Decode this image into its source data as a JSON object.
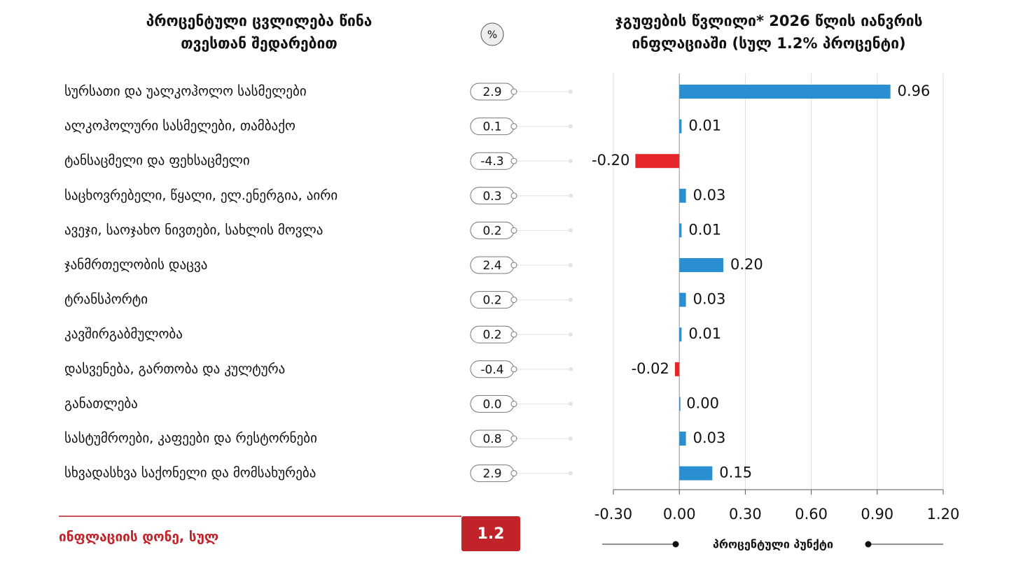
{
  "monthly_change": {
    "title": "პროცენტული ცვლილება წინა თვესთან შედარებით",
    "unit": "%",
    "values": [
      "2.9",
      "0.1",
      "-4.3",
      "0.3",
      "0.2",
      "2.4",
      "0.2",
      "0.2",
      "-0.4",
      "0.0",
      "0.8",
      "2.9"
    ]
  },
  "total": {
    "label": "ინფლაციის დონე, სულ",
    "value": "1.2"
  },
  "chart_data": {
    "type": "bar",
    "orientation": "horizontal",
    "title": "ჯგუფების წვლილი* 2026 წლის იანვრის ინფლაციაში (სულ 1.2% პროცენტი)",
    "x_label": "პროცენტული პუნქტი",
    "categories": [
      "სურსათი და უალკოჰოლო სასმელები",
      "ალკოჰოლური სასმელები, თამბაქო",
      "ტანსაცმელი და ფეხსაცმელი",
      "საცხოვრებელი, წყალი, ელ.ენერგია, აირი",
      "ავეჯი, საოჯახო ნივთები, სახლის მოვლა",
      "ჯანმრთელობის დაცვა",
      "ტრანსპორტი",
      "კავშირგაბმულობა",
      "დასვენება, გართობა და კულტურა",
      "განათლება",
      "სასტუმროები, კაფეები და რესტორნები",
      "სხვადასხვა საქონელი და მომსახურება"
    ],
    "values": [
      0.96,
      0.01,
      -0.2,
      0.03,
      0.01,
      0.2,
      0.03,
      0.01,
      -0.02,
      0,
      0.03,
      0.15
    ],
    "value_labels": [
      "0.96",
      "0.01",
      "-0.20",
      "0.03",
      "0.01",
      "0.20",
      "0.03",
      "0.01",
      "-0.02",
      "0.00",
      "0.03",
      "0.15"
    ],
    "color": "#2a8fd0",
    "negative_color": "#e5262b",
    "xlim": [
      -0.3,
      1.2
    ],
    "xticks": [
      {
        "value": -0.3,
        "label": "-0.30"
      },
      {
        "value": 0,
        "label": "0.00"
      },
      {
        "value": 0.3,
        "label": "0.30"
      },
      {
        "value": 0.6,
        "label": "0.60"
      },
      {
        "value": 0.9,
        "label": "0.90"
      },
      {
        "value": 1.2,
        "label": "1.20"
      }
    ],
    "grid": true
  }
}
